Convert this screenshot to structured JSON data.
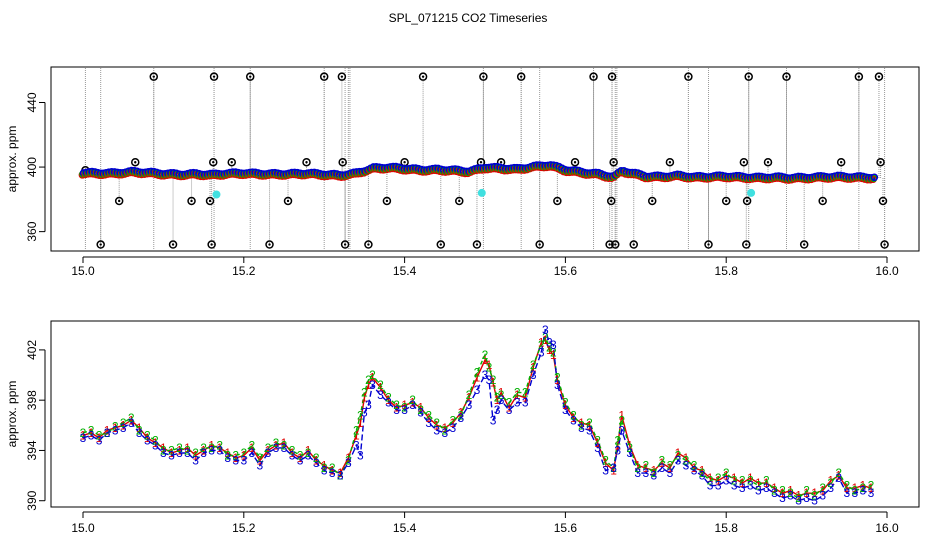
{
  "figure": {
    "title": "SPL_071215  CO2 Timeseries"
  },
  "colors": {
    "series1": "#e00000",
    "series2": "#00b000",
    "series3": "#0000d0",
    "outlier": "#000000",
    "highlight": "#40e0e0",
    "spike": "#999999"
  },
  "chart_data": [
    {
      "type": "scatter",
      "title": "",
      "xlabel": "",
      "ylabel": "approx. ppm",
      "xlim": [
        15.0,
        16.0
      ],
      "ylim": [
        348,
        462
      ],
      "xticks": [
        "15.0",
        "15.2",
        "15.4",
        "15.6",
        "15.8",
        "16.0"
      ],
      "yticks": [
        "360",
        "400",
        "440"
      ],
      "baseline": [
        [
          15.0,
          396.2
        ],
        [
          15.02,
          396.0
        ],
        [
          15.04,
          396.0
        ],
        [
          15.06,
          396.8
        ],
        [
          15.08,
          396.4
        ],
        [
          15.1,
          395.6
        ],
        [
          15.12,
          395.2
        ],
        [
          15.14,
          395.5
        ],
        [
          15.16,
          395.0
        ],
        [
          15.18,
          395.8
        ],
        [
          15.2,
          396.0
        ],
        [
          15.22,
          395.6
        ],
        [
          15.24,
          395.4
        ],
        [
          15.26,
          395.6
        ],
        [
          15.28,
          395.8
        ],
        [
          15.3,
          395.2
        ],
        [
          15.32,
          394.6
        ],
        [
          15.34,
          396.0
        ],
        [
          15.36,
          399.0
        ],
        [
          15.38,
          399.5
        ],
        [
          15.4,
          398.8
        ],
        [
          15.42,
          398.0
        ],
        [
          15.44,
          398.2
        ],
        [
          15.46,
          397.8
        ],
        [
          15.48,
          397.0
        ],
        [
          15.5,
          399.5
        ],
        [
          15.52,
          399.0
        ],
        [
          15.54,
          398.5
        ],
        [
          15.56,
          400.0
        ],
        [
          15.58,
          401.0
        ],
        [
          15.6,
          398.0
        ],
        [
          15.62,
          396.5
        ],
        [
          15.64,
          395.5
        ],
        [
          15.66,
          393.5
        ],
        [
          15.67,
          397.5
        ],
        [
          15.7,
          394.0
        ],
        [
          15.72,
          393.8
        ],
        [
          15.74,
          394.5
        ],
        [
          15.76,
          393.5
        ],
        [
          15.78,
          393.8
        ],
        [
          15.8,
          394.0
        ],
        [
          15.82,
          393.5
        ],
        [
          15.84,
          393.2
        ],
        [
          15.86,
          393.4
        ],
        [
          15.88,
          393.0
        ],
        [
          15.9,
          393.2
        ],
        [
          15.92,
          393.6
        ],
        [
          15.94,
          393.8
        ],
        [
          15.96,
          393.5
        ],
        [
          15.98,
          393.2
        ]
      ],
      "outliers": [
        [
          15.003,
          398
        ],
        [
          15.022,
          352
        ],
        [
          15.045,
          379
        ],
        [
          15.065,
          403
        ],
        [
          15.088,
          456
        ],
        [
          15.112,
          352
        ],
        [
          15.135,
          379
        ],
        [
          15.158,
          379
        ],
        [
          15.16,
          352
        ],
        [
          15.162,
          403
        ],
        [
          15.163,
          456
        ],
        [
          15.185,
          403
        ],
        [
          15.208,
          456
        ],
        [
          15.232,
          352
        ],
        [
          15.255,
          379
        ],
        [
          15.278,
          403
        ],
        [
          15.3,
          456
        ],
        [
          15.322,
          456
        ],
        [
          15.323,
          403
        ],
        [
          15.326,
          352
        ],
        [
          15.355,
          352
        ],
        [
          15.378,
          379
        ],
        [
          15.4,
          403
        ],
        [
          15.423,
          456
        ],
        [
          15.445,
          352
        ],
        [
          15.468,
          379
        ],
        [
          15.49,
          352
        ],
        [
          15.495,
          403
        ],
        [
          15.498,
          456
        ],
        [
          15.52,
          403
        ],
        [
          15.545,
          456
        ],
        [
          15.568,
          352
        ],
        [
          15.59,
          379
        ],
        [
          15.612,
          403
        ],
        [
          15.635,
          456
        ],
        [
          15.655,
          352
        ],
        [
          15.657,
          379
        ],
        [
          15.658,
          456
        ],
        [
          15.66,
          403
        ],
        [
          15.662,
          352
        ],
        [
          15.685,
          352
        ],
        [
          15.708,
          379
        ],
        [
          15.73,
          403
        ],
        [
          15.753,
          456
        ],
        [
          15.778,
          352
        ],
        [
          15.8,
          379
        ],
        [
          15.822,
          403
        ],
        [
          15.825,
          352
        ],
        [
          15.826,
          379
        ],
        [
          15.828,
          456
        ],
        [
          15.852,
          403
        ],
        [
          15.875,
          456
        ],
        [
          15.897,
          352
        ],
        [
          15.92,
          379
        ],
        [
          15.943,
          403
        ],
        [
          15.965,
          456
        ],
        [
          15.99,
          456
        ],
        [
          15.992,
          403
        ],
        [
          15.995,
          379
        ],
        [
          15.997,
          352
        ]
      ],
      "highlights": [
        [
          15.166,
          383
        ],
        [
          15.496,
          384
        ],
        [
          15.831,
          384
        ]
      ],
      "spikes": [
        15.003,
        15.022,
        15.088,
        15.163,
        15.208,
        15.3,
        15.326,
        15.33,
        15.332,
        15.498,
        15.545,
        15.568,
        15.635,
        15.658,
        15.662,
        15.664,
        15.753,
        15.778,
        15.828,
        15.875,
        15.965,
        15.997
      ]
    },
    {
      "type": "line",
      "title": "",
      "xlabel": "",
      "ylabel": "approx. ppm",
      "xlim": [
        15.0,
        16.0
      ],
      "ylim": [
        389.5,
        404.3
      ],
      "xticks": [
        "15.0",
        "15.2",
        "15.4",
        "15.6",
        "15.8",
        "16.0"
      ],
      "yticks": [
        "390",
        "394",
        "398",
        "402"
      ],
      "x": [
        15.0,
        15.01,
        15.02,
        15.03,
        15.04,
        15.05,
        15.06,
        15.07,
        15.08,
        15.09,
        15.1,
        15.11,
        15.12,
        15.13,
        15.14,
        15.15,
        15.16,
        15.17,
        15.18,
        15.19,
        15.2,
        15.21,
        15.22,
        15.23,
        15.24,
        15.25,
        15.26,
        15.27,
        15.28,
        15.29,
        15.3,
        15.31,
        15.32,
        15.33,
        15.34,
        15.345,
        15.35,
        15.355,
        15.36,
        15.37,
        15.38,
        15.39,
        15.4,
        15.41,
        15.42,
        15.43,
        15.44,
        15.45,
        15.46,
        15.47,
        15.48,
        15.49,
        15.5,
        15.505,
        15.51,
        15.515,
        15.52,
        15.53,
        15.54,
        15.55,
        15.56,
        15.57,
        15.575,
        15.58,
        15.585,
        15.59,
        15.6,
        15.61,
        15.62,
        15.63,
        15.64,
        15.65,
        15.66,
        15.665,
        15.67,
        15.68,
        15.69,
        15.7,
        15.71,
        15.72,
        15.73,
        15.74,
        15.75,
        15.76,
        15.77,
        15.78,
        15.79,
        15.8,
        15.81,
        15.82,
        15.83,
        15.84,
        15.85,
        15.86,
        15.87,
        15.88,
        15.89,
        15.9,
        15.91,
        15.92,
        15.93,
        15.94,
        15.95,
        15.96,
        15.97,
        15.98
      ],
      "series": [
        {
          "name": "1",
          "values": [
            395.2,
            395.4,
            395.0,
            395.6,
            395.8,
            396.0,
            396.4,
            395.8,
            395.0,
            394.6,
            394.2,
            393.8,
            394.0,
            394.2,
            393.6,
            394.0,
            394.4,
            394.2,
            393.8,
            393.4,
            393.6,
            394.2,
            393.2,
            394.0,
            394.4,
            394.6,
            393.8,
            393.4,
            394.0,
            393.2,
            392.8,
            392.4,
            392.2,
            393.4,
            395.2,
            396.2,
            398.2,
            399.2,
            399.8,
            399.0,
            398.0,
            397.4,
            397.6,
            397.8,
            397.4,
            396.6,
            396.0,
            395.8,
            396.2,
            397.0,
            398.2,
            399.8,
            401.2,
            400.8,
            399.4,
            398.0,
            398.6,
            397.4,
            398.4,
            398.2,
            400.6,
            402.6,
            402.8,
            402.0,
            401.6,
            399.6,
            397.6,
            396.6,
            396.2,
            396.0,
            394.6,
            393.0,
            392.4,
            394.4,
            396.8,
            394.4,
            392.8,
            392.6,
            392.4,
            393.0,
            392.6,
            393.8,
            393.4,
            392.6,
            392.4,
            391.8,
            391.6,
            392.0,
            391.8,
            391.4,
            391.8,
            391.4,
            391.4,
            391.0,
            390.6,
            390.8,
            390.4,
            390.6,
            390.6,
            390.8,
            391.6,
            392.0,
            391.0,
            391.0,
            391.2,
            391.0
          ]
        },
        {
          "name": "2",
          "values": [
            395.4,
            395.6,
            395.2,
            395.4,
            395.9,
            396.2,
            396.6,
            395.6,
            395.2,
            394.8,
            394.0,
            394.0,
            394.2,
            394.0,
            393.8,
            394.2,
            394.2,
            394.4,
            393.6,
            393.6,
            393.8,
            394.4,
            393.4,
            394.2,
            394.6,
            394.4,
            394.0,
            393.6,
            393.8,
            393.4,
            392.6,
            392.6,
            392.0,
            393.2,
            395.6,
            396.8,
            398.6,
            399.6,
            400.0,
            399.2,
            398.2,
            397.6,
            397.4,
            398.0,
            397.2,
            396.8,
            396.2,
            395.6,
            396.4,
            396.8,
            398.4,
            400.2,
            401.6,
            400.6,
            399.6,
            398.2,
            398.4,
            397.8,
            398.6,
            398.6,
            400.8,
            402.4,
            403.0,
            402.2,
            401.8,
            399.8,
            397.8,
            396.8,
            396.0,
            396.2,
            394.8,
            393.2,
            392.6,
            394.8,
            396.4,
            394.2,
            392.6,
            392.8,
            392.2,
            393.2,
            392.8,
            393.6,
            393.2,
            392.8,
            392.2,
            391.6,
            391.8,
            392.2,
            391.6,
            391.6,
            391.6,
            391.2,
            391.6,
            390.8,
            390.8,
            390.6,
            390.2,
            390.8,
            390.4,
            391.0,
            391.4,
            392.2,
            391.2,
            390.8,
            391.0,
            391.2
          ]
        },
        {
          "name": "3",
          "values": [
            395.0,
            395.2,
            394.8,
            395.4,
            395.6,
            395.8,
            396.2,
            395.4,
            394.8,
            394.4,
            393.8,
            393.6,
            393.8,
            393.8,
            393.2,
            393.8,
            394.0,
            394.0,
            393.4,
            393.2,
            393.2,
            393.8,
            392.8,
            393.8,
            394.2,
            394.2,
            393.6,
            393.2,
            393.6,
            393.0,
            392.4,
            392.2,
            392.0,
            393.0,
            394.4,
            393.6,
            397.0,
            397.6,
            399.2,
            398.4,
            397.8,
            397.2,
            397.2,
            397.6,
            397.0,
            396.2,
            395.6,
            395.4,
            395.8,
            396.6,
            397.6,
            398.8,
            400.0,
            399.6,
            396.4,
            397.2,
            398.0,
            397.2,
            397.8,
            397.8,
            400.0,
            401.8,
            403.6,
            402.6,
            402.4,
            399.2,
            397.2,
            396.4,
            395.8,
            395.6,
            394.2,
            392.4,
            392.6,
            394.0,
            395.6,
            393.8,
            392.2,
            392.2,
            392.0,
            392.6,
            392.2,
            393.2,
            392.8,
            392.4,
            392.0,
            391.2,
            391.2,
            391.6,
            391.2,
            391.0,
            391.2,
            390.8,
            391.0,
            390.6,
            390.2,
            390.4,
            390.0,
            390.2,
            390.0,
            390.4,
            391.0,
            391.8,
            390.6,
            390.6,
            390.8,
            390.6
          ]
        }
      ]
    }
  ]
}
